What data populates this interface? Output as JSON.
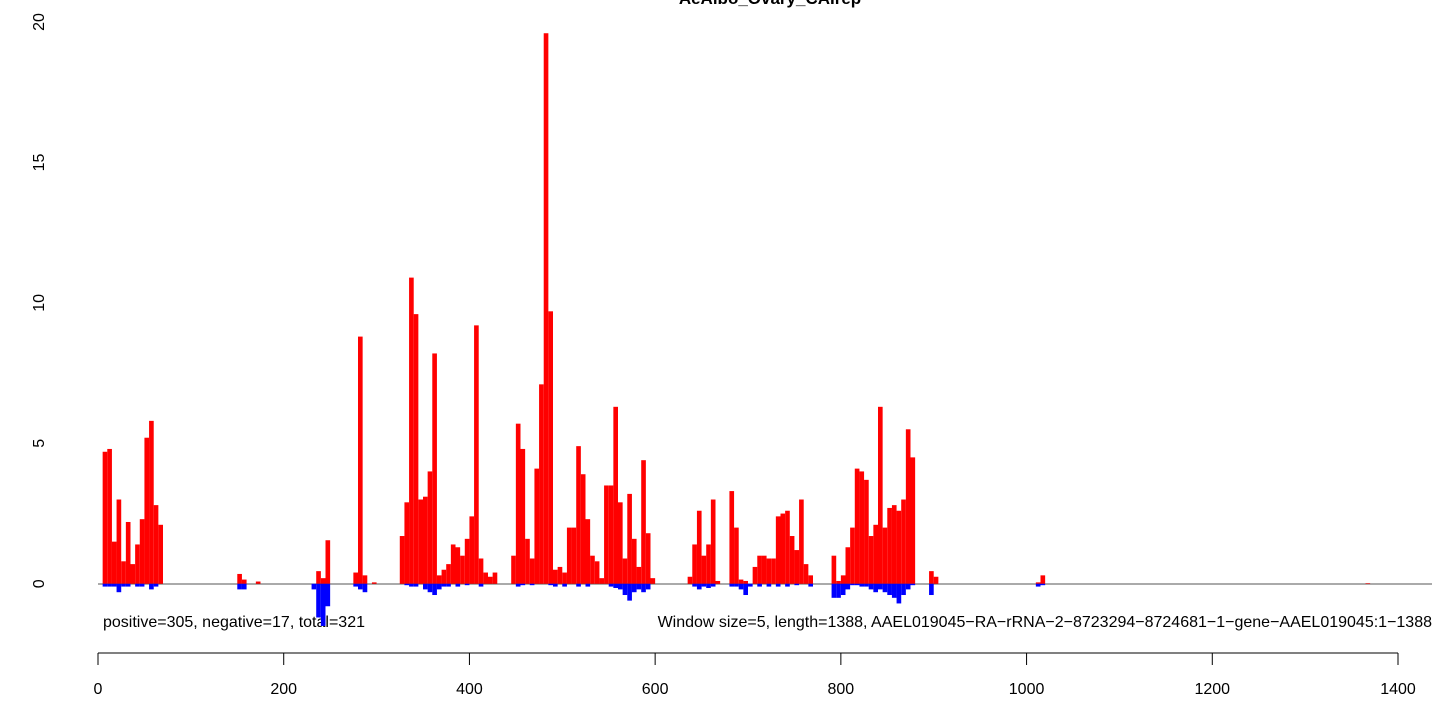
{
  "chart_data": {
    "type": "bar",
    "title": "AeAlbo_Ovary_CAIrep",
    "annotations": [
      "positive=305, negative=17, total=321",
      "Window size=5, length=1388, AAEL019045−RA−rRNA−2−8723294−8724681−1−gene−AAEL019045:1−1388"
    ],
    "x": [
      5,
      10,
      15,
      20,
      25,
      30,
      35,
      40,
      45,
      50,
      55,
      60,
      65,
      150,
      155,
      170,
      230,
      235,
      240,
      245,
      275,
      280,
      285,
      295,
      325,
      330,
      335,
      340,
      345,
      350,
      355,
      360,
      365,
      370,
      375,
      380,
      385,
      390,
      395,
      400,
      405,
      410,
      415,
      420,
      425,
      445,
      450,
      455,
      460,
      465,
      470,
      475,
      480,
      485,
      490,
      495,
      500,
      505,
      510,
      515,
      520,
      525,
      530,
      535,
      540,
      545,
      550,
      555,
      560,
      565,
      570,
      575,
      580,
      585,
      590,
      595,
      635,
      640,
      645,
      650,
      655,
      660,
      665,
      680,
      685,
      690,
      695,
      700,
      705,
      710,
      715,
      720,
      725,
      730,
      735,
      740,
      745,
      750,
      755,
      760,
      765,
      790,
      795,
      800,
      805,
      810,
      815,
      820,
      825,
      830,
      835,
      840,
      845,
      850,
      855,
      860,
      865,
      870,
      875,
      895,
      900,
      1010,
      1015,
      1365
    ],
    "series": [
      {
        "color": "#ff0000",
        "values": [
          4.7,
          4.8,
          1.5,
          3.0,
          0.8,
          2.2,
          0.7,
          1.4,
          2.3,
          5.2,
          5.8,
          2.8,
          2.1,
          0.35,
          0.15,
          0.08,
          0,
          0.45,
          0.2,
          1.55,
          0.4,
          8.8,
          0.3,
          0.05,
          1.7,
          2.9,
          10.9,
          9.6,
          3.0,
          3.1,
          4.0,
          8.2,
          0.3,
          0.5,
          0.7,
          1.4,
          1.3,
          1.0,
          1.6,
          2.4,
          9.2,
          0.9,
          0.4,
          0.25,
          0.4,
          1.0,
          5.7,
          4.8,
          1.6,
          0.9,
          4.1,
          7.1,
          19.6,
          9.7,
          0.5,
          0.6,
          0.4,
          2.0,
          2.0,
          4.9,
          3.9,
          2.3,
          1.0,
          0.8,
          0.2,
          3.5,
          3.5,
          6.3,
          2.9,
          0.9,
          3.2,
          1.6,
          0.6,
          4.4,
          1.8,
          0.2,
          0.25,
          1.4,
          2.6,
          1.0,
          1.4,
          3.0,
          0.1,
          3.3,
          2.0,
          0.15,
          0.1,
          0,
          0.6,
          1.0,
          1.0,
          0.9,
          0.9,
          2.4,
          2.5,
          2.6,
          1.7,
          1.2,
          3.0,
          0.7,
          0.3,
          1.0,
          0.1,
          0.3,
          1.3,
          2.0,
          4.1,
          4.0,
          3.7,
          1.7,
          2.1,
          6.3,
          2.0,
          2.7,
          2.8,
          2.6,
          3.0,
          5.5,
          4.5,
          0.45,
          0.25,
          0.05,
          0.3,
          0.02
        ]
      },
      {
        "color": "#0000ff",
        "values": [
          -0.1,
          -0.1,
          -0.1,
          -0.3,
          -0.1,
          -0.1,
          0,
          -0.1,
          -0.1,
          0,
          -0.2,
          -0.1,
          0,
          -0.2,
          -0.2,
          0,
          -0.2,
          -1.2,
          -1.5,
          -0.8,
          -0.1,
          -0.2,
          -0.3,
          0,
          0,
          -0.05,
          -0.1,
          -0.1,
          0,
          -0.2,
          -0.3,
          -0.4,
          -0.2,
          -0.1,
          -0.1,
          0,
          -0.1,
          0,
          -0.05,
          0,
          0,
          -0.1,
          0,
          0,
          0,
          0,
          -0.1,
          -0.05,
          0,
          -0.05,
          0,
          0,
          0,
          -0.05,
          -0.1,
          0,
          -0.1,
          0,
          0,
          -0.1,
          0,
          -0.1,
          0,
          0,
          0,
          0,
          -0.1,
          -0.15,
          -0.2,
          -0.4,
          -0.6,
          -0.3,
          -0.2,
          -0.3,
          -0.2,
          0,
          0,
          -0.1,
          -0.2,
          -0.1,
          -0.15,
          -0.1,
          0,
          -0.1,
          -0.1,
          -0.2,
          -0.4,
          -0.1,
          0,
          -0.1,
          0,
          -0.1,
          0,
          -0.1,
          0,
          -0.1,
          0,
          -0.05,
          0,
          0,
          -0.1,
          -0.5,
          -0.5,
          -0.4,
          -0.2,
          -0.05,
          -0.05,
          -0.1,
          -0.1,
          -0.2,
          -0.3,
          -0.2,
          -0.3,
          -0.4,
          -0.5,
          -0.7,
          -0.4,
          -0.2,
          -0.05,
          -0.4,
          0,
          -0.1,
          -0.05,
          0
        ]
      }
    ],
    "xlim": [
      0,
      1400
    ],
    "xticks": [
      0,
      200,
      400,
      600,
      800,
      1000,
      1200,
      1400
    ],
    "ylim": [
      -2.5,
      20
    ],
    "yticks": [
      0,
      5,
      10,
      15,
      20
    ]
  }
}
